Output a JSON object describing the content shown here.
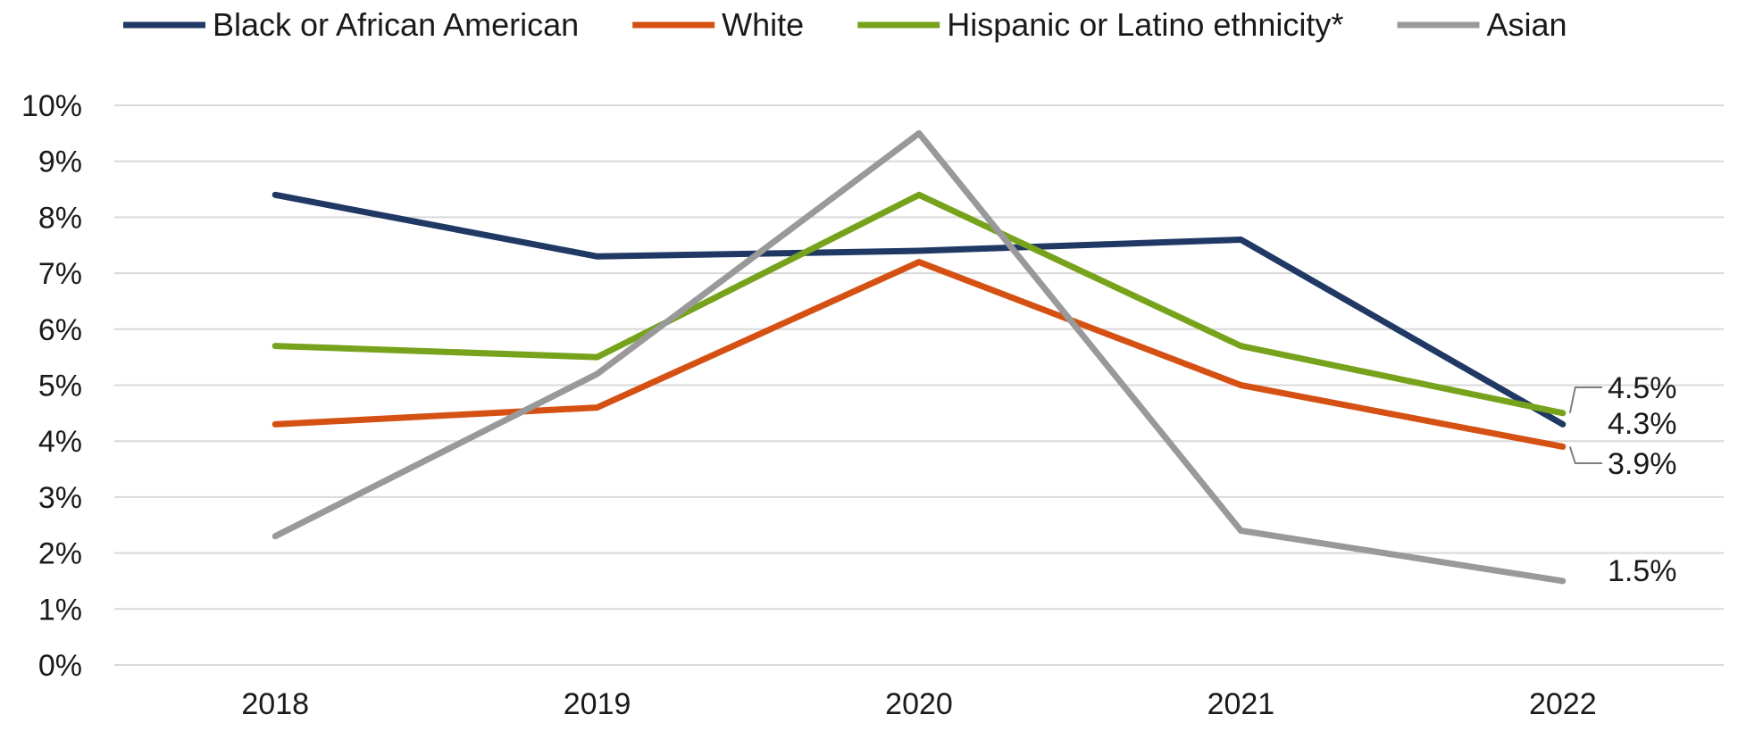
{
  "chart_data": {
    "type": "line",
    "title": "",
    "xlabel": "",
    "ylabel": "",
    "x": [
      "2018",
      "2019",
      "2020",
      "2021",
      "2022"
    ],
    "ylim": [
      0,
      10
    ],
    "y_ticks": [
      "0%",
      "1%",
      "2%",
      "3%",
      "4%",
      "5%",
      "6%",
      "7%",
      "8%",
      "9%",
      "10%"
    ],
    "grid": true,
    "legend_position": "top",
    "series": [
      {
        "name": "Black or African American",
        "color": "#1f3864",
        "values": [
          8.4,
          7.3,
          7.4,
          7.6,
          4.3
        ]
      },
      {
        "name": "White",
        "color": "#d55113",
        "values": [
          4.3,
          4.6,
          7.2,
          5.0,
          3.9
        ]
      },
      {
        "name": "Hispanic or Latino ethnicity*",
        "color": "#77a21c",
        "values": [
          5.7,
          5.5,
          8.4,
          5.7,
          4.5
        ]
      },
      {
        "name": "Asian",
        "color": "#999999",
        "values": [
          2.3,
          5.2,
          9.5,
          2.4,
          1.5
        ]
      }
    ],
    "end_labels": [
      {
        "series": "Hispanic or Latino ethnicity*",
        "text": "4.5%"
      },
      {
        "series": "Black or African American",
        "text": "4.3%"
      },
      {
        "series": "White",
        "text": "3.9%"
      },
      {
        "series": "Asian",
        "text": "1.5%"
      }
    ]
  }
}
